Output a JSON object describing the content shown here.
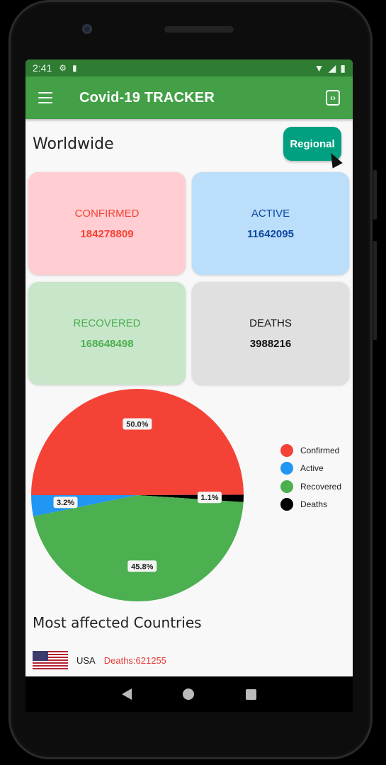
{
  "status_bar": {
    "time": "2:41"
  },
  "app_bar": {
    "title": "Covid-19 TRACKER"
  },
  "section": {
    "title": "Worldwide",
    "regional_button": "Regional"
  },
  "stats": [
    {
      "label": "CONFIRMED",
      "value": "184278809",
      "bg": "#ffcdd2",
      "color": "#f44336"
    },
    {
      "label": "ACTIVE",
      "value": "11642095",
      "bg": "#bbdefb",
      "color": "#0d47a1"
    },
    {
      "label": "RECOVERED",
      "value": "168648498",
      "bg": "#c8e6c9",
      "color": "#4caf50"
    },
    {
      "label": "DEATHS",
      "value": "3988216",
      "bg": "#e0e0e0",
      "color": "#111111"
    }
  ],
  "chart_data": {
    "type": "pie",
    "slices": [
      {
        "name": "Confirmed",
        "value": 50.0,
        "label": "50.0%",
        "color": "#f44336"
      },
      {
        "name": "Active",
        "value": 3.2,
        "label": "3.2%",
        "color": "#2196f3"
      },
      {
        "name": "Recovered",
        "value": 45.8,
        "label": "45.8%",
        "color": "#4caf50"
      },
      {
        "name": "Deaths",
        "value": 1.1,
        "label": "1.1%",
        "color": "#000000"
      }
    ],
    "legend_position": "right"
  },
  "affected": {
    "title": "Most affected Countries",
    "countries": [
      {
        "name": "USA",
        "deaths": "Deaths:621255"
      }
    ]
  }
}
